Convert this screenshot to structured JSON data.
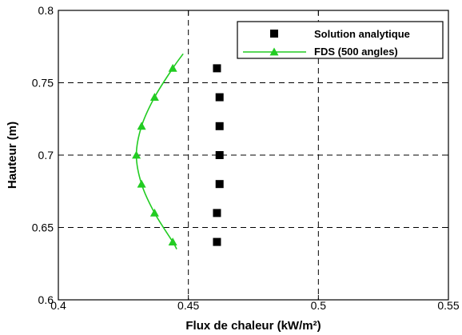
{
  "chart_data": {
    "type": "scatter",
    "xlabel": "Flux de chaleur (kW/m²)",
    "ylabel": "Hauteur (m)",
    "xlim": [
      0.4,
      0.55
    ],
    "ylim": [
      0.6,
      0.8
    ],
    "x_ticks": [
      "0.4",
      "0.45",
      "0.5",
      "0.55"
    ],
    "y_ticks": [
      "0.6",
      "0.65",
      "0.7",
      "0.75",
      "0.8"
    ],
    "grid": "dashed at each tick",
    "legend_position": "top-right",
    "series": [
      {
        "name": "Solution analytique",
        "style": "square markers",
        "color": "#000000",
        "x": [
          0.461,
          0.461,
          0.462,
          0.462,
          0.462,
          0.462,
          0.461
        ],
        "y": [
          0.64,
          0.66,
          0.68,
          0.7,
          0.72,
          0.74,
          0.76
        ]
      },
      {
        "name": "FDS (500 angles)",
        "style": "line with triangle markers",
        "color": "#22cc22",
        "x": [
          0.444,
          0.437,
          0.432,
          0.43,
          0.432,
          0.437,
          0.444
        ],
        "y": [
          0.64,
          0.66,
          0.68,
          0.7,
          0.72,
          0.74,
          0.76
        ],
        "curve_ends": [
          [
            0.4455,
            0.635
          ],
          [
            0.448,
            0.77
          ]
        ]
      }
    ]
  }
}
